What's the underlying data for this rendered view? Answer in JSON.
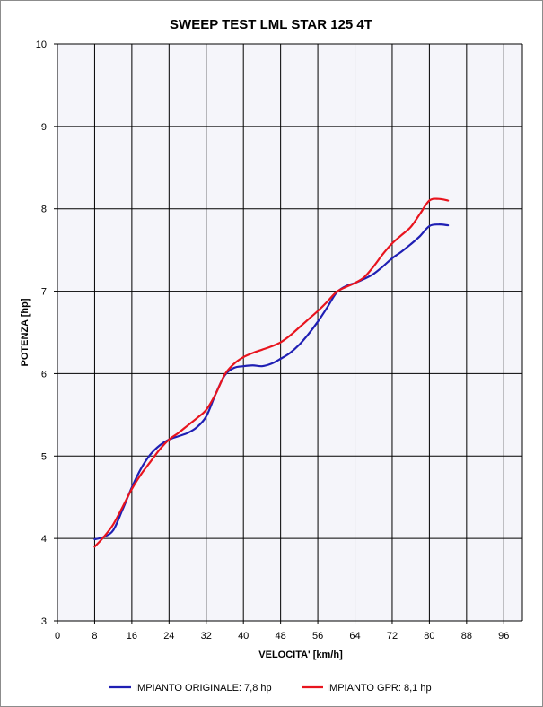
{
  "chart_data": {
    "type": "line",
    "title": "SWEEP TEST LML STAR 125 4T",
    "xlabel": "VELOCITA'  [km/h]",
    "ylabel": "POTENZA [hp]",
    "xlim": [
      0,
      100
    ],
    "ylim": [
      3,
      10
    ],
    "x_ticks": [
      "0",
      "8",
      "16",
      "24",
      "32",
      "40",
      "48",
      "56",
      "64",
      "72",
      "80",
      "88",
      "96"
    ],
    "y_ticks": [
      "3",
      "4",
      "5",
      "6",
      "7",
      "8",
      "9",
      "10"
    ],
    "grid": true,
    "legend_position": "bottom",
    "series": [
      {
        "name": "IMPIANTO ORIGINALE: 7,8 hp",
        "color": "#1f1fb4",
        "points": [
          [
            8,
            3.99
          ],
          [
            10,
            4.02
          ],
          [
            12,
            4.1
          ],
          [
            14,
            4.35
          ],
          [
            16,
            4.62
          ],
          [
            18,
            4.85
          ],
          [
            20,
            5.02
          ],
          [
            22,
            5.13
          ],
          [
            24,
            5.2
          ],
          [
            26,
            5.24
          ],
          [
            28,
            5.28
          ],
          [
            30,
            5.35
          ],
          [
            32,
            5.48
          ],
          [
            34,
            5.75
          ],
          [
            36,
            5.98
          ],
          [
            38,
            6.07
          ],
          [
            40,
            6.09
          ],
          [
            42,
            6.1
          ],
          [
            44,
            6.09
          ],
          [
            46,
            6.12
          ],
          [
            48,
            6.18
          ],
          [
            50,
            6.25
          ],
          [
            52,
            6.35
          ],
          [
            54,
            6.48
          ],
          [
            56,
            6.63
          ],
          [
            58,
            6.8
          ],
          [
            60,
            6.98
          ],
          [
            62,
            7.06
          ],
          [
            64,
            7.1
          ],
          [
            66,
            7.15
          ],
          [
            68,
            7.21
          ],
          [
            70,
            7.3
          ],
          [
            72,
            7.4
          ],
          [
            74,
            7.48
          ],
          [
            76,
            7.57
          ],
          [
            78,
            7.67
          ],
          [
            80,
            7.79
          ],
          [
            82,
            7.81
          ],
          [
            84,
            7.8
          ]
        ]
      },
      {
        "name": "IMPIANTO GPR: 8,1 hp",
        "color": "#e8141e",
        "points": [
          [
            8,
            3.9
          ],
          [
            10,
            4.02
          ],
          [
            12,
            4.17
          ],
          [
            14,
            4.38
          ],
          [
            16,
            4.6
          ],
          [
            18,
            4.78
          ],
          [
            20,
            4.93
          ],
          [
            22,
            5.08
          ],
          [
            24,
            5.2
          ],
          [
            26,
            5.28
          ],
          [
            28,
            5.37
          ],
          [
            30,
            5.46
          ],
          [
            32,
            5.56
          ],
          [
            34,
            5.75
          ],
          [
            36,
            5.99
          ],
          [
            38,
            6.12
          ],
          [
            40,
            6.2
          ],
          [
            42,
            6.25
          ],
          [
            44,
            6.29
          ],
          [
            46,
            6.33
          ],
          [
            48,
            6.38
          ],
          [
            50,
            6.46
          ],
          [
            52,
            6.56
          ],
          [
            54,
            6.66
          ],
          [
            56,
            6.76
          ],
          [
            58,
            6.87
          ],
          [
            60,
            6.99
          ],
          [
            62,
            7.05
          ],
          [
            64,
            7.1
          ],
          [
            66,
            7.17
          ],
          [
            68,
            7.3
          ],
          [
            70,
            7.45
          ],
          [
            72,
            7.58
          ],
          [
            74,
            7.68
          ],
          [
            76,
            7.78
          ],
          [
            78,
            7.94
          ],
          [
            80,
            8.1
          ],
          [
            82,
            8.12
          ],
          [
            84,
            8.1
          ]
        ]
      }
    ]
  }
}
